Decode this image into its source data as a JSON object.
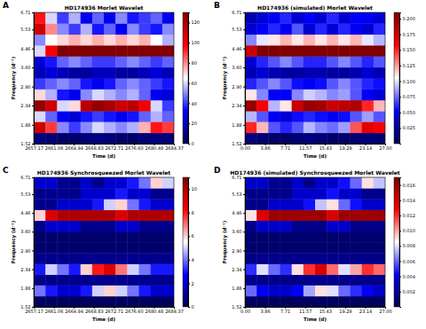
{
  "chart_data": [
    {
      "type": "heatmap",
      "panel": "A",
      "title": "HD174936 Morlet Wavelet",
      "xlabel": "Time (d)",
      "ylabel": "Frequency (d⁻¹)",
      "log": "y",
      "x": [
        2657.17,
        2659.44,
        2661.7,
        2663.97,
        2666.24,
        2668.5,
        2670.77,
        2673.04,
        2675.3,
        2677.57,
        2679.84,
        2682.1,
        2684.37
      ],
      "y": [
        1.52,
        1.72,
        1.95,
        2.2,
        2.49,
        2.82,
        3.19,
        3.61,
        4.09,
        4.63,
        5.24,
        5.93,
        6.71
      ],
      "values": [
        [
          10,
          8,
          5,
          5,
          8,
          10,
          8,
          5,
          5,
          8,
          10,
          8
        ],
        [
          110,
          90,
          50,
          40,
          50,
          60,
          55,
          50,
          55,
          75,
          95,
          90
        ],
        [
          60,
          45,
          30,
          25,
          35,
          40,
          35,
          30,
          35,
          45,
          55,
          45
        ],
        [
          125,
          110,
          60,
          70,
          115,
          125,
          120,
          110,
          115,
          100,
          60,
          40
        ],
        [
          70,
          55,
          35,
          30,
          50,
          60,
          55,
          50,
          55,
          45,
          30,
          25
        ],
        [
          40,
          45,
          50,
          45,
          35,
          30,
          35,
          45,
          50,
          45,
          40,
          35
        ],
        [
          20,
          25,
          20,
          15,
          15,
          20,
          20,
          15,
          15,
          20,
          25,
          20
        ],
        [
          25,
          35,
          45,
          50,
          45,
          40,
          40,
          45,
          50,
          45,
          40,
          45
        ],
        [
          60,
          100,
          130,
          130,
          130,
          130,
          130,
          130,
          130,
          130,
          130,
          130
        ],
        [
          50,
          65,
          70,
          75,
          70,
          75,
          70,
          75,
          70,
          75,
          65,
          55
        ],
        [
          110,
          80,
          50,
          40,
          55,
          35,
          45,
          30,
          50,
          40,
          35,
          50
        ],
        [
          95,
          60,
          40,
          55,
          30,
          45,
          30,
          50,
          35,
          40,
          45,
          30
        ]
      ],
      "xlim": [
        2657.17,
        2684.37
      ],
      "xticks": [
        2657.17,
        2661.06,
        2664.94,
        2668.83,
        2672.71,
        {
          "value": 2676.6,
          "label": "2676.60"
        },
        2680.48,
        2684.37
      ],
      "ylim": [
        1.52,
        6.71
      ],
      "yticks": [
        1.52,
        1.88,
        2.34,
        {
          "value": 2.9,
          "label": "2.90"
        },
        {
          "value": 3.6,
          "label": "3.60"
        },
        4.46,
        5.53,
        6.71
      ],
      "zlim": [
        0,
        130
      ],
      "zticks": [
        0,
        20,
        40,
        60,
        80,
        100,
        120
      ]
    },
    {
      "type": "heatmap",
      "panel": "B",
      "title": "HD174936 (simulated) Morlet Wavelet",
      "xlabel": "Time (d)",
      "ylabel": "Frequency (d⁻¹)",
      "log": "y",
      "x": [
        0,
        2.25,
        4.5,
        6.75,
        9,
        11.25,
        13.5,
        15.75,
        18,
        20.25,
        22.5,
        24.75,
        27
      ],
      "y": [
        1.52,
        1.72,
        1.95,
        2.2,
        2.49,
        2.82,
        3.19,
        3.61,
        4.09,
        4.63,
        5.24,
        5.93,
        6.71
      ],
      "values": [
        [
          0.015,
          0.012,
          0.008,
          0.008,
          0.012,
          0.015,
          0.012,
          0.008,
          0.008,
          0.012,
          0.015,
          0.012
        ],
        [
          0.15,
          0.12,
          0.07,
          0.06,
          0.07,
          0.09,
          0.08,
          0.075,
          0.085,
          0.14,
          0.17,
          0.16
        ],
        [
          0.09,
          0.07,
          0.05,
          0.04,
          0.055,
          0.06,
          0.055,
          0.05,
          0.055,
          0.07,
          0.085,
          0.07
        ],
        [
          0.2,
          0.16,
          0.09,
          0.11,
          0.18,
          0.2,
          0.195,
          0.18,
          0.185,
          0.19,
          0.15,
          0.12
        ],
        [
          0.11,
          0.08,
          0.05,
          0.05,
          0.08,
          0.095,
          0.09,
          0.08,
          0.085,
          0.07,
          0.05,
          0.04
        ],
        [
          0.06,
          0.07,
          0.08,
          0.07,
          0.055,
          0.05,
          0.055,
          0.07,
          0.08,
          0.07,
          0.06,
          0.055
        ],
        [
          0.03,
          0.04,
          0.03,
          0.025,
          0.025,
          0.03,
          0.03,
          0.025,
          0.025,
          0.03,
          0.04,
          0.03
        ],
        [
          0.04,
          0.06,
          0.07,
          0.08,
          0.07,
          0.06,
          0.06,
          0.07,
          0.08,
          0.07,
          0.06,
          0.07
        ],
        [
          0.18,
          0.21,
          0.21,
          0.21,
          0.21,
          0.21,
          0.21,
          0.21,
          0.21,
          0.21,
          0.21,
          0.21
        ],
        [
          0.08,
          0.1,
          0.11,
          0.12,
          0.11,
          0.12,
          0.11,
          0.12,
          0.11,
          0.12,
          0.1,
          0.09
        ],
        [
          0.04,
          0.05,
          0.06,
          0.05,
          0.07,
          0.04,
          0.06,
          0.04,
          0.06,
          0.05,
          0.04,
          0.06
        ],
        [
          0.03,
          0.04,
          0.05,
          0.06,
          0.04,
          0.05,
          0.04,
          0.06,
          0.04,
          0.05,
          0.05,
          0.04
        ]
      ],
      "xlim": [
        0,
        27
      ],
      "xticks": [
        {
          "value": 0,
          "label": "0.00"
        },
        3.86,
        7.71,
        11.57,
        15.43,
        19.29,
        23.14,
        {
          "value": 27,
          "label": "27.00"
        }
      ],
      "ylim": [
        1.52,
        6.71
      ],
      "yticks": [
        1.52,
        1.88,
        2.34,
        {
          "value": 2.9,
          "label": "2.90"
        },
        {
          "value": 3.6,
          "label": "3.60"
        },
        4.46,
        5.53,
        6.71
      ],
      "zlim": [
        0,
        0.21
      ],
      "zticks": [
        0.025,
        {
          "value": 0.05,
          "label": "0.050"
        },
        0.075,
        {
          "value": 0.1,
          "label": "0.100"
        },
        0.125,
        {
          "value": 0.15,
          "label": "0.150"
        },
        0.175,
        {
          "value": 0.2,
          "label": "0.200"
        }
      ]
    },
    {
      "type": "heatmap",
      "panel": "C",
      "title": "HD174936 Synchrosqueezed Morlet Wavelet",
      "xlabel": "Time (d)",
      "ylabel": "Frequency (d⁻¹)",
      "log": "y",
      "x": [
        2657.17,
        2659.44,
        2661.7,
        2663.97,
        2666.24,
        2668.5,
        2670.77,
        2673.04,
        2675.3,
        2677.57,
        2679.84,
        2682.1,
        2684.37
      ],
      "y": [
        1.52,
        1.72,
        1.95,
        2.2,
        2.49,
        2.82,
        3.19,
        3.61,
        4.09,
        4.63,
        5.24,
        5.93,
        6.71
      ],
      "values": [
        [
          0.3,
          0.3,
          0.3,
          0.3,
          0.3,
          0.3,
          0.3,
          0.3,
          0.3,
          0.3,
          0.3,
          0.3
        ],
        [
          4,
          3,
          2,
          2,
          3,
          5,
          6,
          5,
          4,
          3,
          2,
          2
        ],
        [
          1,
          1,
          1,
          1,
          1,
          1,
          1,
          1,
          1,
          1,
          1,
          1
        ],
        [
          3,
          5,
          4,
          3,
          6,
          8,
          9,
          7,
          5,
          4,
          3,
          3
        ],
        [
          1,
          1,
          1,
          1,
          1,
          1,
          1,
          1,
          1,
          1,
          1,
          1
        ],
        [
          0.5,
          0.5,
          0.5,
          0.5,
          0.5,
          0.5,
          0.5,
          0.5,
          0.5,
          0.5,
          0.5,
          0.5
        ],
        [
          0.5,
          0.5,
          0.5,
          0.5,
          0.5,
          0.5,
          0.5,
          0.5,
          0.5,
          0.5,
          0.5,
          0.5
        ],
        [
          1,
          2,
          2,
          2,
          1,
          1,
          1,
          2,
          2,
          1,
          1,
          1
        ],
        [
          6,
          9,
          10,
          10,
          10,
          10,
          10,
          9,
          10,
          10,
          10,
          10
        ],
        [
          1,
          1,
          2,
          2,
          2,
          3,
          5,
          6,
          4,
          3,
          2,
          2
        ],
        [
          1,
          1,
          1,
          1,
          2,
          2,
          2,
          3,
          2,
          2,
          1,
          1
        ],
        [
          2,
          2,
          1,
          1,
          2,
          1,
          2,
          2,
          3,
          4,
          6,
          5
        ]
      ],
      "xlim": [
        2657.17,
        2684.37
      ],
      "xticks": [
        2657.17,
        2661.06,
        2664.94,
        2668.83,
        2672.71,
        {
          "value": 2676.6,
          "label": "2676.60"
        },
        2680.48,
        2684.37
      ],
      "ylim": [
        1.52,
        6.71
      ],
      "yticks": [
        1.52,
        1.88,
        2.34,
        {
          "value": 2.9,
          "label": "2.90"
        },
        {
          "value": 3.6,
          "label": "3.60"
        },
        4.46,
        5.53,
        6.71
      ],
      "zlim": [
        0,
        11
      ],
      "zticks": [
        0,
        2,
        4,
        6,
        8,
        10
      ]
    },
    {
      "type": "heatmap",
      "panel": "D",
      "title": "HD174936 (simulated) Synchrosqueezed Morlet Wavelet",
      "xlabel": "Time (d)",
      "ylabel": "Frequency (d⁻¹)",
      "log": "y",
      "x": [
        0,
        2.25,
        4.5,
        6.75,
        9,
        11.25,
        13.5,
        15.75,
        18,
        20.25,
        22.5,
        24.75,
        27
      ],
      "y": [
        1.52,
        1.72,
        1.95,
        2.2,
        2.49,
        2.82,
        3.19,
        3.61,
        4.09,
        4.63,
        5.24,
        5.93,
        6.71
      ],
      "values": [
        [
          0.0005,
          0.0005,
          0.0005,
          0.0005,
          0.0005,
          0.0005,
          0.0005,
          0.0005,
          0.0005,
          0.0005,
          0.0005,
          0.0005
        ],
        [
          0.006,
          0.004,
          0.003,
          0.003,
          0.004,
          0.007,
          0.009,
          0.008,
          0.006,
          0.005,
          0.004,
          0.003
        ],
        [
          0.0015,
          0.0015,
          0.0015,
          0.0015,
          0.0015,
          0.0015,
          0.0015,
          0.0015,
          0.0015,
          0.0015,
          0.0015,
          0.0015
        ],
        [
          0.005,
          0.008,
          0.006,
          0.005,
          0.009,
          0.012,
          0.014,
          0.011,
          0.008,
          0.01,
          0.012,
          0.011
        ],
        [
          0.0015,
          0.0015,
          0.0015,
          0.0015,
          0.0015,
          0.0015,
          0.0015,
          0.0015,
          0.0015,
          0.0015,
          0.0015,
          0.0015
        ],
        [
          0.0008,
          0.0008,
          0.0008,
          0.0008,
          0.0008,
          0.0008,
          0.0008,
          0.0008,
          0.0008,
          0.0008,
          0.0008,
          0.0008
        ],
        [
          0.0008,
          0.0008,
          0.0008,
          0.0008,
          0.0008,
          0.0008,
          0.0008,
          0.0008,
          0.0008,
          0.0008,
          0.0008,
          0.0008
        ],
        [
          0.0015,
          0.003,
          0.003,
          0.003,
          0.0015,
          0.0015,
          0.0015,
          0.003,
          0.003,
          0.0015,
          0.0015,
          0.0015
        ],
        [
          0.009,
          0.014,
          0.016,
          0.016,
          0.016,
          0.016,
          0.016,
          0.014,
          0.016,
          0.016,
          0.016,
          0.016
        ],
        [
          0.0015,
          0.0015,
          0.003,
          0.003,
          0.003,
          0.0045,
          0.0075,
          0.009,
          0.006,
          0.0045,
          0.003,
          0.003
        ],
        [
          0.0015,
          0.0015,
          0.0015,
          0.0015,
          0.003,
          0.003,
          0.003,
          0.0045,
          0.003,
          0.003,
          0.0015,
          0.0015
        ],
        [
          0.003,
          0.003,
          0.0015,
          0.0015,
          0.003,
          0.0015,
          0.003,
          0.003,
          0.0045,
          0.006,
          0.009,
          0.0075
        ]
      ],
      "xlim": [
        0,
        27
      ],
      "xticks": [
        {
          "value": 0,
          "label": "0.00"
        },
        3.86,
        7.71,
        11.57,
        15.43,
        19.29,
        23.14,
        {
          "value": 27,
          "label": "27.00"
        }
      ],
      "ylim": [
        1.52,
        6.71
      ],
      "yticks": [
        1.52,
        1.88,
        2.34,
        {
          "value": 2.9,
          "label": "2.90"
        },
        {
          "value": 3.6,
          "label": "3.60"
        },
        4.46,
        5.53,
        6.71
      ],
      "zlim": [
        0,
        0.017
      ],
      "zticks": [
        0.002,
        0.004,
        0.006,
        0.008,
        {
          "value": 0.01,
          "label": "0.010"
        },
        0.012,
        0.014,
        0.016
      ]
    }
  ]
}
